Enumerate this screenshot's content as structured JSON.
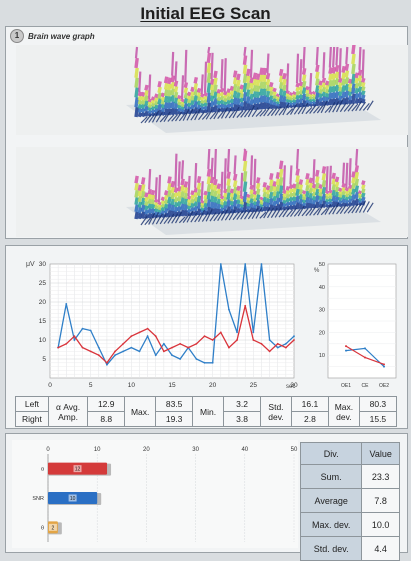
{
  "title": "Initial EEG Scan",
  "wave_section": {
    "number": "1",
    "label": "Brain wave graph"
  },
  "line_chart": {
    "y_unit": "μV",
    "x_unit": "sec",
    "x_ticks": [
      "0",
      "5",
      "10",
      "15",
      "20",
      "25",
      "30"
    ],
    "y_ticks": [
      "5",
      "10",
      "15",
      "20",
      "25",
      "30"
    ],
    "series": [
      {
        "color": "#2f7fc8",
        "x": [
          1,
          2,
          3,
          4,
          5,
          6,
          7,
          8,
          9,
          10,
          11,
          12,
          13,
          14,
          15,
          16,
          17,
          18,
          19,
          20,
          21,
          22,
          23,
          24,
          25,
          26,
          27,
          28,
          29,
          30
        ],
        "y": [
          8,
          19.5,
          10,
          13,
          12.5,
          8,
          3.5,
          6,
          7,
          8,
          7,
          11,
          6,
          9,
          6,
          5,
          8,
          5,
          4,
          4,
          30,
          18,
          12,
          30,
          12,
          30,
          10,
          8,
          9,
          11
        ]
      },
      {
        "color": "#d9343b",
        "x": [
          1,
          2,
          3,
          4,
          5,
          6,
          7,
          8,
          9,
          10,
          11,
          12,
          13,
          14,
          15,
          16,
          17,
          18,
          19,
          20,
          21,
          22,
          23,
          24,
          25,
          26,
          27,
          28,
          29,
          30
        ],
        "y": [
          8,
          9,
          11,
          8,
          7,
          6,
          4,
          7,
          9,
          11,
          12,
          13,
          11,
          7,
          8,
          9,
          8,
          9,
          11,
          10,
          12,
          8,
          10,
          19,
          10,
          9,
          7,
          9,
          8,
          10
        ]
      }
    ]
  },
  "small_chart": {
    "y_ticks": [
      "10",
      "20",
      "30",
      "40",
      "50"
    ],
    "y_unit": "%",
    "categories": [
      "OE1",
      "CE",
      "OE2"
    ],
    "series": [
      {
        "color": "#2f7fc8",
        "values": [
          12,
          13,
          5
        ]
      },
      {
        "color": "#d9343b",
        "values": [
          14,
          9,
          6
        ]
      }
    ]
  },
  "stats": {
    "left_label": "Left",
    "right_label": "Right",
    "avg_amp_label": [
      "α Avg.",
      "Amp."
    ],
    "max_label": "Max.",
    "min_label": "Min.",
    "std_dev_label": [
      "Std.",
      "dev."
    ],
    "max_dev_label": [
      "Max.",
      "dev."
    ],
    "left": {
      "avg_amp": "12.9",
      "max": "83.5",
      "min": "3.2",
      "std_dev": "16.1",
      "max_dev": "80.3"
    },
    "right": {
      "avg_amp": "8.8",
      "max": "19.3",
      "min": "3.8",
      "std_dev": "2.8",
      "max_dev": "15.5"
    }
  },
  "bar_chart": {
    "ticks": [
      "0",
      "10",
      "20",
      "30",
      "40",
      "50"
    ],
    "bars": [
      {
        "label": "α",
        "value": 12,
        "display": "12",
        "color": "#d43a3a"
      },
      {
        "label": "SNR",
        "value": 10,
        "display": "10",
        "color": "#2a6fc4"
      },
      {
        "label": "θ",
        "value": 2,
        "display": "2",
        "color": "#e3a545"
      }
    ]
  },
  "div_table": {
    "headers": [
      "Div.",
      "Value"
    ],
    "rows": [
      {
        "label": "Sum.",
        "value": "23.3"
      },
      {
        "label": "Average",
        "value": "7.8"
      },
      {
        "label": "Max. dev.",
        "value": "10.0"
      },
      {
        "label": "Std. dev.",
        "value": "4.4"
      }
    ]
  }
}
